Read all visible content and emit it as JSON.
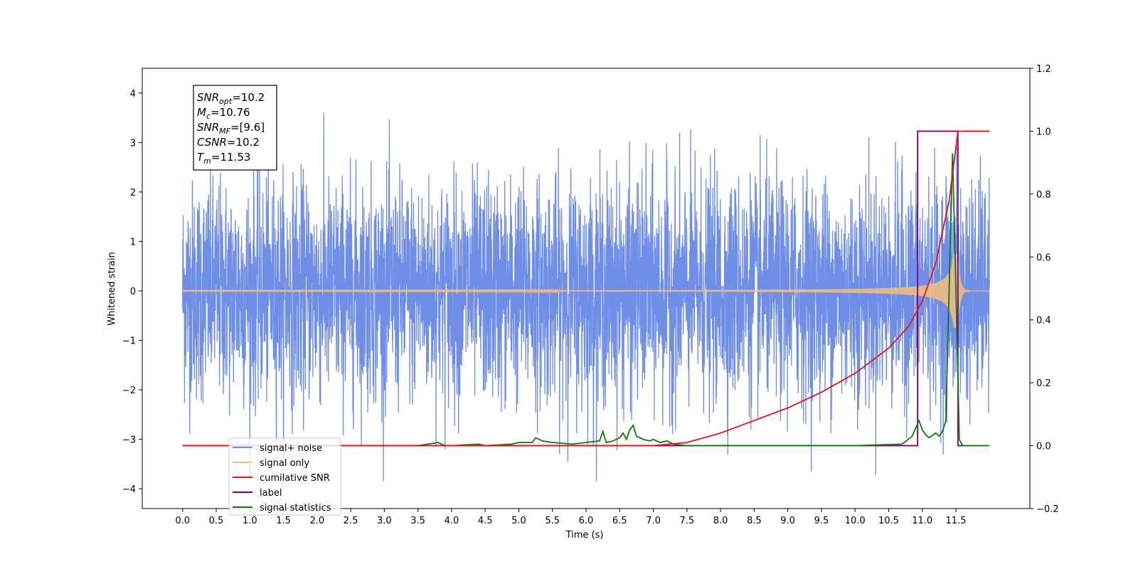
{
  "chart_data": {
    "type": "line",
    "title": "",
    "xlabel": "Time (s)",
    "ylabel": "Whitened strain",
    "ylabel_right": "",
    "xlim": [
      -0.6,
      12.6
    ],
    "ylim": [
      -4.4,
      4.5
    ],
    "ylim_right": [
      -0.2,
      1.2
    ],
    "x_ticks": [
      "0.0",
      "0.5",
      "1.0",
      "1.5",
      "2.0",
      "2.5",
      "3.0",
      "3.5",
      "4.0",
      "4.5",
      "5.0",
      "5.5",
      "6.0",
      "6.5",
      "7.0",
      "7.5",
      "8.0",
      "8.5",
      "9.0",
      "9.5",
      "10.0",
      "10.5",
      "11.0",
      "11.5"
    ],
    "y_ticks": [
      "−4",
      "−3",
      "−2",
      "−1",
      "0",
      "1",
      "2",
      "3",
      "4"
    ],
    "y_ticks_right": [
      "−0.2",
      "0.0",
      "0.2",
      "0.4",
      "0.6",
      "0.8",
      "1.0",
      "1.2"
    ],
    "grid": false,
    "legend_position": "lower-left",
    "annotation": {
      "lines": [
        {
          "base": "SNR",
          "sub": "opt",
          "rest": "=10.2"
        },
        {
          "base": "M",
          "sub": "c",
          "rest": "=10.76"
        },
        {
          "base": "SNR",
          "sub": "MF",
          "rest": "=[9.6]"
        },
        {
          "base": "CSNR",
          "sub": "",
          "rest": "=10.2"
        },
        {
          "base": "T",
          "sub": "m",
          "rest": "=11.53"
        }
      ]
    },
    "series": [
      {
        "name": "signal+ noise",
        "color": "#6f8ee8",
        "axis": "left",
        "x_range": [
          0,
          12
        ],
        "noise_std": 1.1,
        "y_range": [
          -3.85,
          3.8
        ]
      },
      {
        "name": "signal only",
        "color": "#f5c07a",
        "axis": "left",
        "x_range": [
          0,
          12
        ],
        "chirp_end": 11.53,
        "peak_amplitude": 0.75
      },
      {
        "name": "cumilative SNR",
        "color": "#e8141a",
        "axis": "right",
        "x": [
          0,
          7.0,
          7.5,
          8.0,
          8.5,
          9.0,
          9.5,
          10.0,
          10.5,
          10.8,
          11.0,
          11.2,
          11.4,
          11.53,
          11.55,
          11.6,
          12.0
        ],
        "values": [
          0,
          0,
          0.01,
          0.04,
          0.08,
          0.12,
          0.17,
          0.23,
          0.31,
          0.38,
          0.46,
          0.58,
          0.78,
          1.0,
          1.0,
          1.0,
          1.0
        ]
      },
      {
        "name": "label",
        "color": "#800080",
        "axis": "right",
        "x": [
          0,
          10.93,
          10.93,
          11.53,
          11.53,
          11.6
        ],
        "values": [
          0,
          0,
          1,
          1,
          0,
          0
        ]
      },
      {
        "name": "signal statistics",
        "color": "#0c7a0c",
        "axis": "right",
        "x": [
          0,
          3.5,
          3.8,
          3.9,
          4.0,
          4.4,
          4.5,
          4.9,
          5.0,
          5.2,
          5.25,
          5.35,
          5.5,
          5.8,
          6.0,
          6.2,
          6.25,
          6.3,
          6.4,
          6.5,
          6.55,
          6.6,
          6.65,
          6.7,
          6.75,
          6.85,
          6.95,
          7.0,
          7.1,
          7.2,
          7.3,
          7.5,
          8.0,
          9.0,
          10.0,
          10.7,
          10.85,
          10.95,
          11.0,
          11.05,
          11.1,
          11.2,
          11.25,
          11.3,
          11.35,
          11.45,
          11.5,
          11.55,
          11.6,
          12.0
        ],
        "values": [
          0,
          0,
          0.01,
          0,
          0,
          0.005,
          0,
          0.005,
          0.01,
          0.01,
          0.025,
          0.015,
          0.01,
          0.005,
          0.01,
          0.015,
          0.045,
          0.01,
          0.015,
          0.025,
          0.04,
          0.02,
          0.05,
          0.065,
          0.03,
          0.02,
          0.015,
          0.02,
          0.01,
          0.015,
          0.005,
          0,
          0,
          0,
          0,
          0.005,
          0.03,
          0.08,
          0.05,
          0.035,
          0.025,
          0.04,
          0.03,
          0.045,
          0.08,
          0.93,
          0.5,
          0.02,
          0,
          0
        ]
      }
    ]
  }
}
